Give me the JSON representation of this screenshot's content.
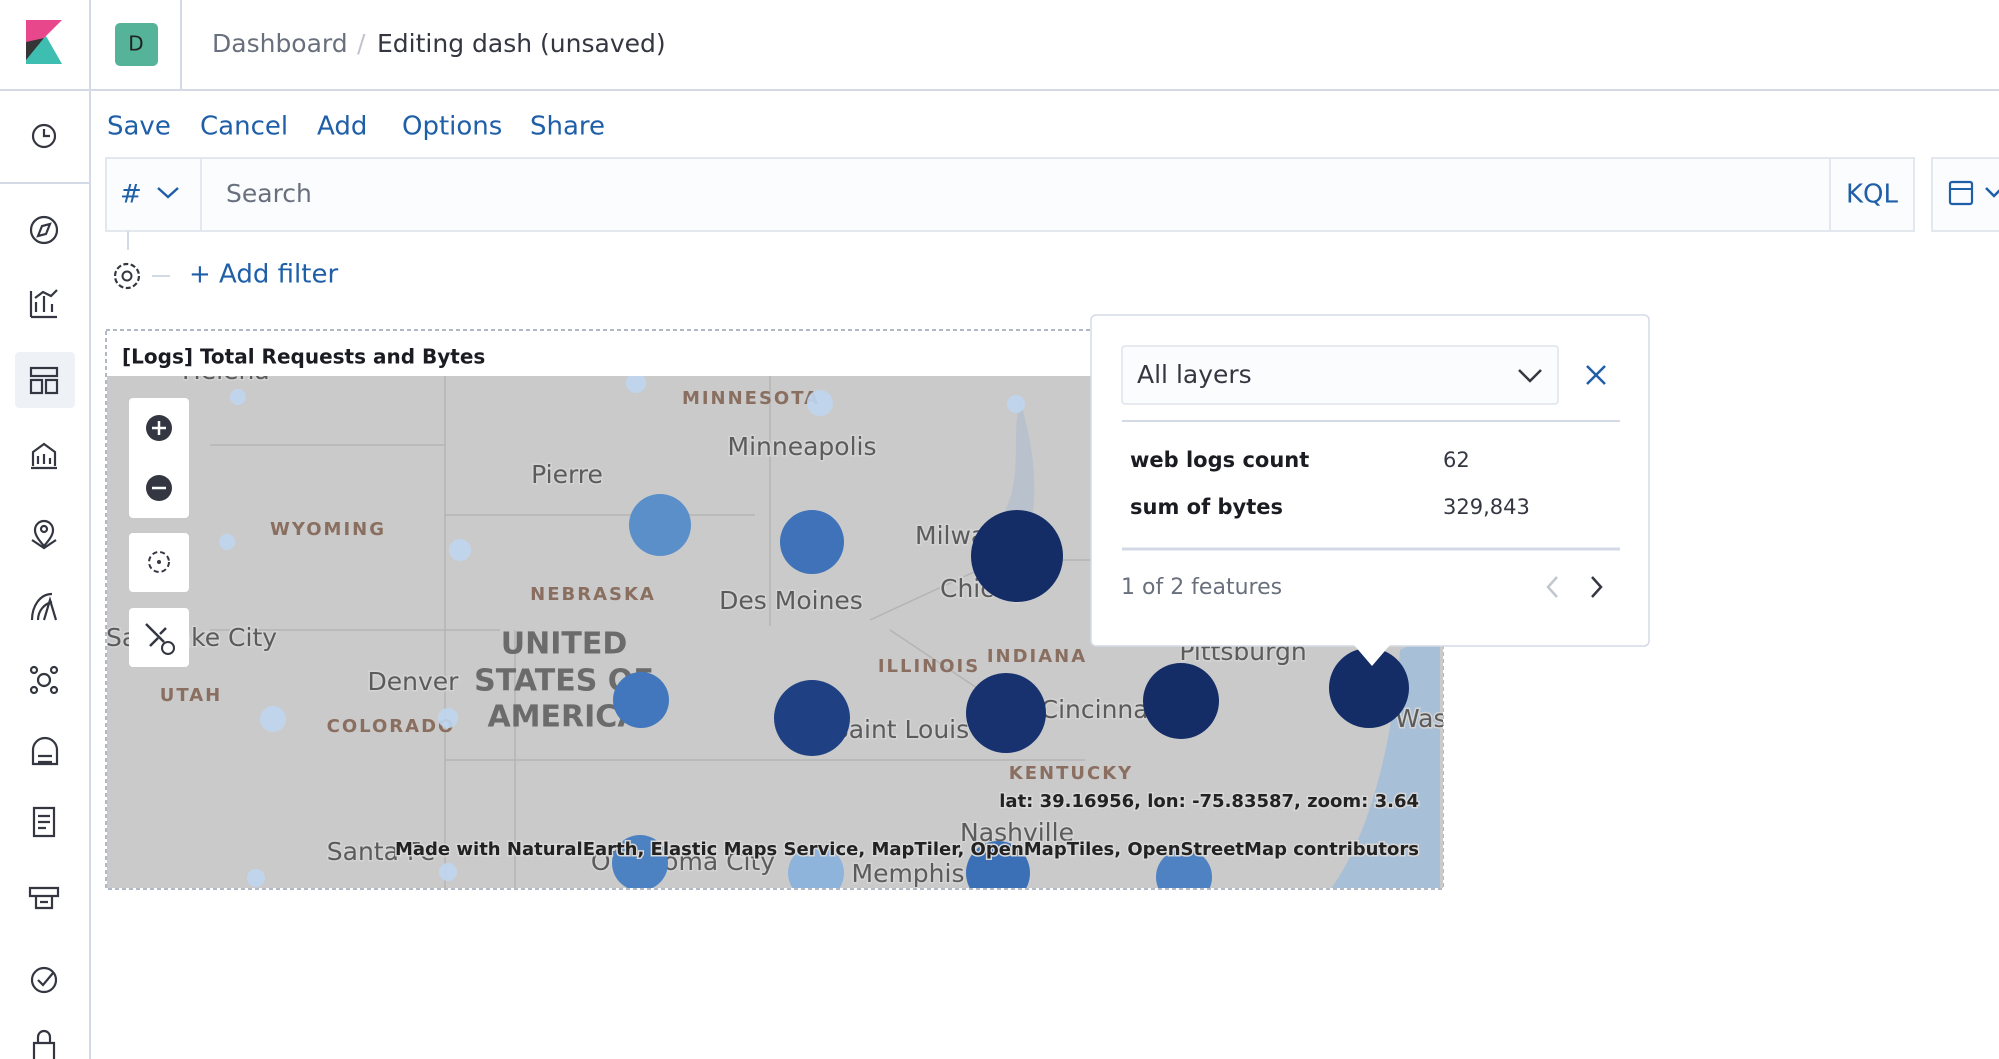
{
  "header": {
    "avatar": "D",
    "breadcrumbs": [
      "Dashboard",
      "Editing dash (unsaved)"
    ]
  },
  "menu": [
    "Save",
    "Cancel",
    "Add",
    "Options",
    "Share"
  ],
  "search": {
    "prefix": "#",
    "placeholder": "Search",
    "language": "KQL"
  },
  "filter": {
    "add": "+ Add filter"
  },
  "panel": {
    "title": "[Logs] Total Requests and Bytes",
    "map_labels": [
      "Helena",
      "MINNESOTA",
      "Minneapolis",
      "Pierre",
      "WYOMING",
      "Milwaukee",
      "Chicago",
      "NEBRASKA",
      "Des Moines",
      "Salt Lake City",
      "UNITED",
      "STATES OF",
      "AMERICA",
      "Denver",
      "UTAH",
      "COLORADO",
      "ILLINOIS",
      "INDIANA",
      "Cincinnati",
      "Pittsburgh",
      "Saint Louis",
      "KENTUCKY",
      "Nashville",
      "Memphis",
      "Oklahoma City",
      "Santa Fe",
      "Washington"
    ],
    "coordinates": "lat: 39.16956, lon: -75.83587, zoom: 3.64",
    "attribution": "Made with NaturalEarth, Elastic Maps Service, MapTiler, OpenMapTiles, OpenStreetMap contributors"
  },
  "tooltip": {
    "layer_select": "All layers",
    "rows": [
      [
        "web logs count",
        "62"
      ],
      [
        "sum of bytes",
        "329,843"
      ]
    ],
    "pager": "1 of 2 features"
  }
}
